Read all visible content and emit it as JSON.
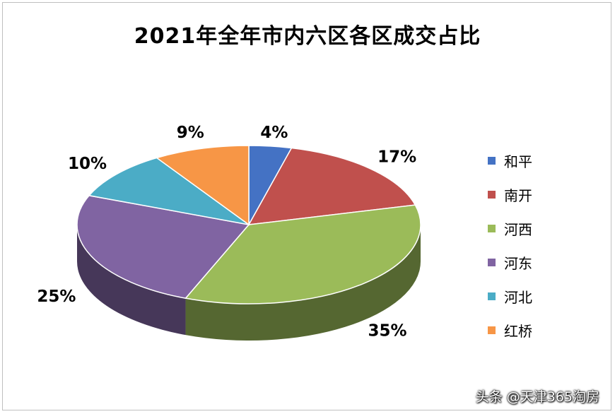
{
  "chart_data": {
    "type": "pie",
    "title": "2021年全年市内六区各区成交占比",
    "categories": [
      "和平",
      "南开",
      "河西",
      "河东",
      "河北",
      "红桥"
    ],
    "values": [
      4,
      17,
      35,
      25,
      10,
      9
    ],
    "labels": [
      "4%",
      "17%",
      "35%",
      "25%",
      "10%",
      "9%"
    ],
    "colors": [
      "#4472c4",
      "#c0504d",
      "#9bbb59",
      "#8064a2",
      "#4bacc6",
      "#f79646"
    ],
    "legend_position": "right",
    "style": "3d"
  },
  "watermark": "头条 @天津365淘房"
}
